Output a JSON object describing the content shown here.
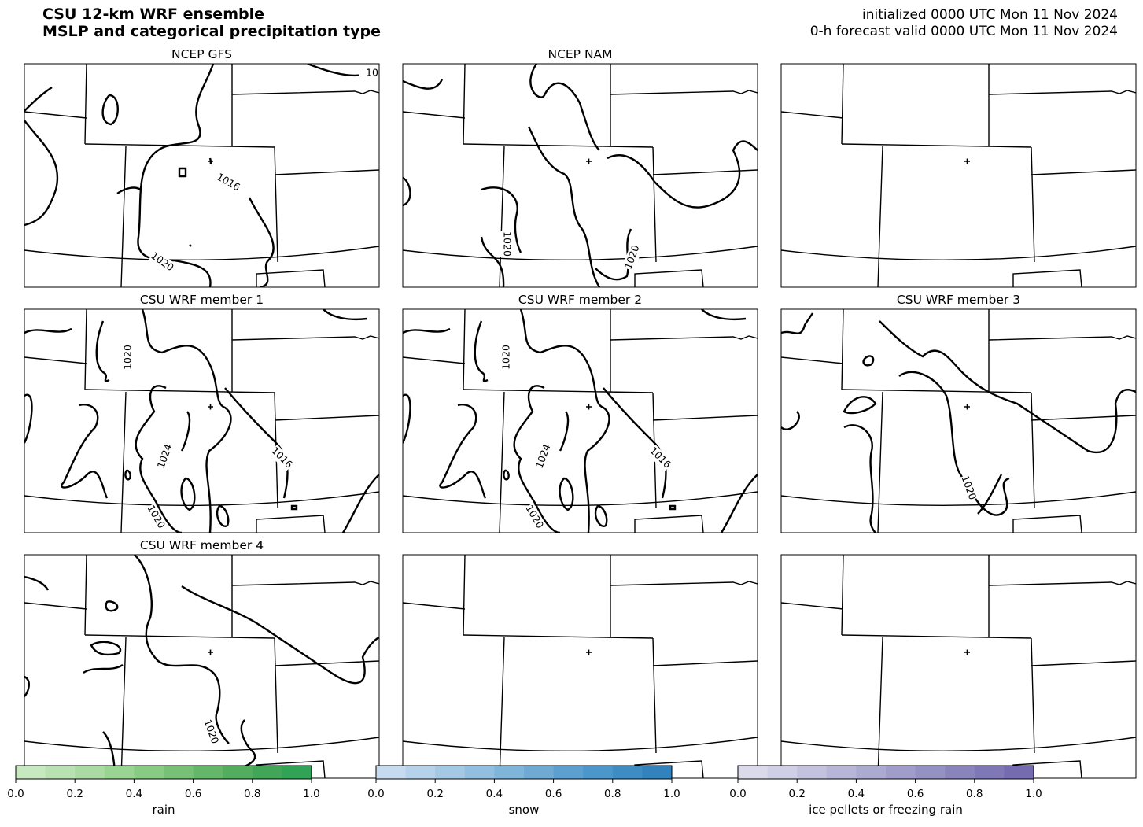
{
  "header": {
    "title_lines": [
      "CSU 12-km WRF ensemble",
      "MSLP and categorical precipitation type"
    ],
    "info_lines": [
      "initialized 0000 UTC Mon 11 Nov 2024",
      "0-h forecast valid 0000 UTC Mon 11 Nov 2024"
    ]
  },
  "panels": [
    {
      "title": "NCEP GFS",
      "contour_labels": [
        "10",
        "1016",
        "1020"
      ]
    },
    {
      "title": "NCEP NAM",
      "contour_labels": [
        "1020",
        "1020"
      ]
    },
    {},
    {
      "title": "CSU WRF member 1",
      "contour_labels": [
        "1020",
        "1024",
        "1016",
        "1020"
      ]
    },
    {
      "title": "CSU WRF member 2",
      "contour_labels": [
        "1020",
        "1024",
        "1016",
        "1020"
      ]
    },
    {
      "title": "CSU WRF member 3",
      "contour_labels": [
        "1020"
      ]
    },
    {
      "title": "CSU WRF member 4",
      "contour_labels": [
        "1020"
      ]
    },
    {},
    {}
  ],
  "colorbars": [
    {
      "label": "rain",
      "ticks": [
        "0.0",
        "0.2",
        "0.4",
        "0.6",
        "0.8",
        "1.0"
      ],
      "colors": [
        "#c7e9c0",
        "#b8e2b1",
        "#a9dba2",
        "#99d493",
        "#88cc84",
        "#76c176",
        "#64b769",
        "#52ad5e",
        "#41a657",
        "#31a354"
      ]
    },
    {
      "label": "snow",
      "ticks": [
        "0.0",
        "0.2",
        "0.4",
        "0.6",
        "0.8",
        "1.0"
      ],
      "colors": [
        "#c6dbef",
        "#b5d2ea",
        "#a3c9e4",
        "#92bfdf",
        "#80b5da",
        "#6eaad4",
        "#5ca0cf",
        "#4b96ca",
        "#3e8cc4",
        "#3182bd"
      ]
    },
    {
      "label": "ice pellets or freezing rain",
      "ticks": [
        "0.0",
        "0.2",
        "0.4",
        "0.6",
        "0.8",
        "1.0"
      ],
      "colors": [
        "#dadaeb",
        "#cfcfe5",
        "#c3c2df",
        "#b7b5d8",
        "#abaad1",
        "#a09dca",
        "#9491c3",
        "#8985bc",
        "#7f78b6",
        "#756bb1"
      ]
    }
  ]
}
